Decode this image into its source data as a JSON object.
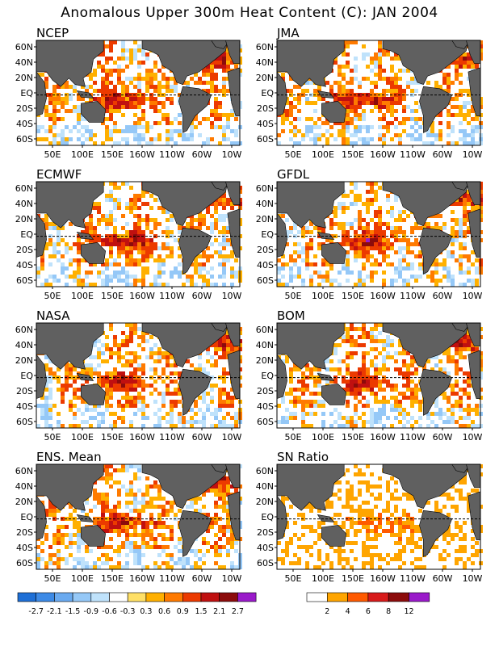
{
  "title": "Anomalous Upper 300m Heat Content (C): JAN 2004",
  "panels": [
    {
      "label": "NCEP"
    },
    {
      "label": "JMA"
    },
    {
      "label": "ECMWF"
    },
    {
      "label": "GFDL"
    },
    {
      "label": "NASA"
    },
    {
      "label": "BOM"
    },
    {
      "label": "ENS. Mean"
    },
    {
      "label": "SN Ratio"
    }
  ],
  "lat_labels": [
    "60N",
    "40N",
    "20N",
    "EQ",
    "20S",
    "40S",
    "60S"
  ],
  "lon_labels": [
    "50E",
    "100E",
    "150E",
    "160W",
    "110W",
    "60W",
    "10W"
  ],
  "colors": {
    "land": "#606060",
    "equator_line": "#000000"
  },
  "anomaly_legend": {
    "colors": [
      "#1e6fd6",
      "#3d8ae6",
      "#6aaaf0",
      "#95c8f7",
      "#bfe2fb",
      "#ffffff",
      "#ffe066",
      "#ffb000",
      "#ff7a00",
      "#ec3a00",
      "#c01010",
      "#8c0b0b",
      "#9a1aca"
    ],
    "labels": [
      "-2.7",
      "-2.1",
      "-1.5",
      "-0.9",
      "-0.6",
      "-0.3",
      "0.3",
      "0.6",
      "0.9",
      "1.5",
      "2.1",
      "2.7"
    ]
  },
  "snr_legend": {
    "colors": [
      "#ffffff",
      "#ffa500",
      "#ff5a00",
      "#d81a1a",
      "#8c0b0b",
      "#9a1aca"
    ],
    "labels": [
      "2",
      "4",
      "6",
      "8",
      "12"
    ]
  }
}
